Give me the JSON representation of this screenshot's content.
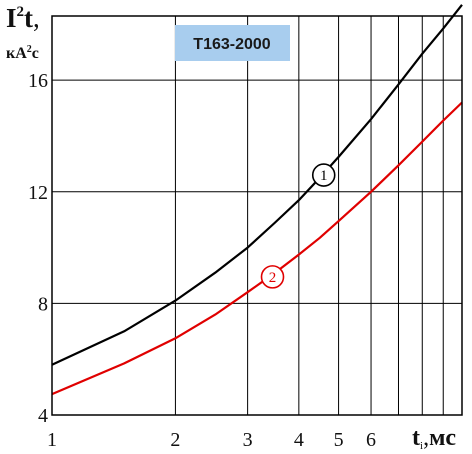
{
  "chart_data": {
    "type": "line",
    "title": "T163-2000",
    "ylabel": {
      "main": "I",
      "sup": "2",
      "after": "t",
      "comma": ",",
      "unit_a": "кА",
      "unit_sup": "2",
      "unit_b": "с"
    },
    "xlabel": {
      "main": "t",
      "sub": "i",
      "comma": ",",
      "unit": "мс"
    },
    "x_scale": "log",
    "xlim": [
      1,
      10
    ],
    "ylim": [
      4,
      18.3
    ],
    "x_ticks": [
      {
        "value": 1,
        "label": "1"
      },
      {
        "value": 2,
        "label": "2"
      },
      {
        "value": 3,
        "label": "3"
      },
      {
        "value": 4,
        "label": "4"
      },
      {
        "value": 5,
        "label": "5"
      },
      {
        "value": 6,
        "label": "6"
      }
    ],
    "y_ticks": [
      {
        "value": 4,
        "label": "4"
      },
      {
        "value": 8,
        "label": "8"
      },
      {
        "value": 12,
        "label": "12"
      },
      {
        "value": 16,
        "label": "16"
      }
    ],
    "grid": true,
    "series": [
      {
        "name": "1",
        "color": "#000000",
        "x": [
          1,
          1.5,
          2,
          2.5,
          3,
          3.5,
          4,
          4.5,
          5,
          6,
          7,
          8,
          9,
          10
        ],
        "y": [
          5.8,
          7.0,
          8.1,
          9.1,
          10.0,
          10.9,
          11.7,
          12.5,
          13.25,
          14.6,
          15.85,
          16.95,
          17.85,
          18.7
        ],
        "marker": {
          "x": 4.6,
          "y": 12.6,
          "label": "1"
        }
      },
      {
        "name": "2",
        "color": "#e00000",
        "x": [
          1,
          1.5,
          2,
          2.5,
          3,
          3.5,
          4,
          4.5,
          5,
          6,
          7,
          8,
          9,
          10
        ],
        "y": [
          4.75,
          5.85,
          6.75,
          7.6,
          8.4,
          9.1,
          9.75,
          10.35,
          10.95,
          12.0,
          12.95,
          13.8,
          14.55,
          15.2
        ],
        "marker": {
          "x": 3.45,
          "y": 8.95,
          "label": "2"
        }
      }
    ],
    "colors": {
      "badge_fill": "#a8cdee",
      "grid": "#000000"
    }
  }
}
